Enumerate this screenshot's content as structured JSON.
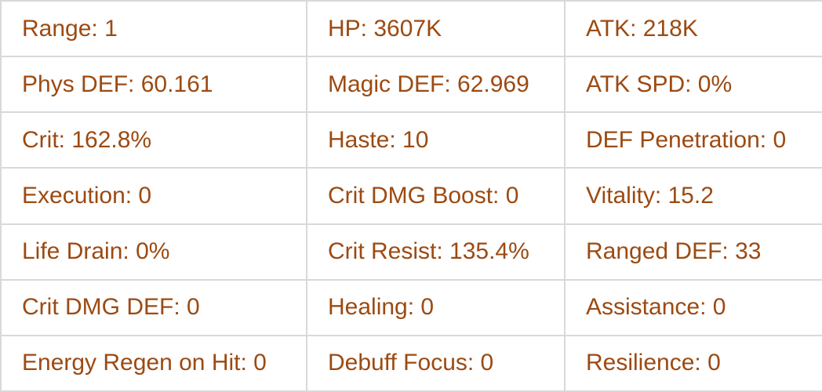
{
  "table": {
    "rows": [
      [
        "Range: 1",
        "HP: 3607K",
        "ATK: 218K"
      ],
      [
        "Phys DEF: 60.161",
        "Magic DEF: 62.969",
        "ATK SPD: 0%"
      ],
      [
        "Crit: 162.8%",
        "Haste: 10",
        "DEF Penetration: 0"
      ],
      [
        "Execution: 0",
        "Crit DMG Boost: 0",
        "Vitality: 15.2"
      ],
      [
        "Life Drain: 0%",
        "Crit Resist: 135.4%",
        "Ranged DEF: 33"
      ],
      [
        "Crit DMG DEF: 0",
        "Healing: 0",
        "Assistance: 0"
      ],
      [
        "Energy Regen on Hit: 0",
        "Debuff Focus: 0",
        "Resilience: 0"
      ]
    ]
  }
}
